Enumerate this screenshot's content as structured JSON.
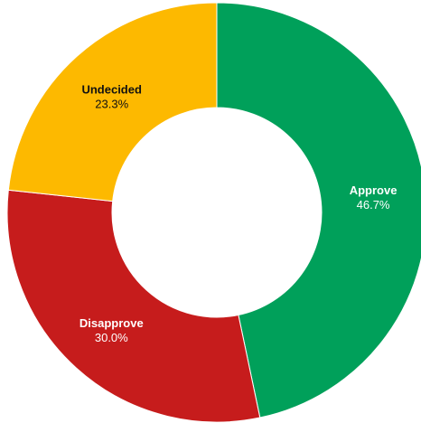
{
  "chart_data": {
    "type": "pie",
    "donut": true,
    "slices": [
      {
        "label": "Approve",
        "value": 46.7,
        "value_label": "46.7%",
        "color": "#00a05a",
        "text_color": "#ffffff"
      },
      {
        "label": "Disapprove",
        "value": 30.0,
        "value_label": "30.0%",
        "color": "#c61c1c",
        "text_color": "#ffffff"
      },
      {
        "label": "Undecided",
        "value": 23.3,
        "value_label": "23.3%",
        "color": "#fdb900",
        "text_color": "#111111"
      }
    ],
    "start_angle_deg": 0,
    "direction": "clockwise"
  }
}
